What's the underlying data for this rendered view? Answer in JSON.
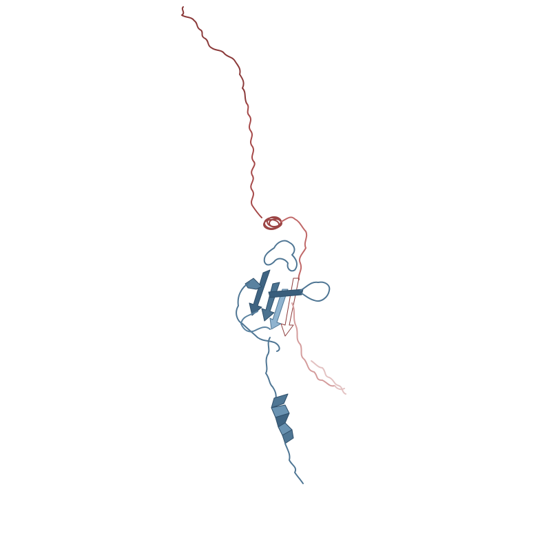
{
  "scene": {
    "background": "#ffffff",
    "chains": [
      {
        "name": "chain-red",
        "colors": {
          "dark": "#8b3a3a",
          "mid": "#b85a5a",
          "light": "#d9a3a3",
          "faint": "#e8c9c9"
        }
      },
      {
        "name": "chain-blue",
        "colors": {
          "dark": "#2f4f6a",
          "mid": "#4f7694",
          "light": "#8fb3cf",
          "highlight": "#b8d2e6"
        }
      }
    ]
  }
}
